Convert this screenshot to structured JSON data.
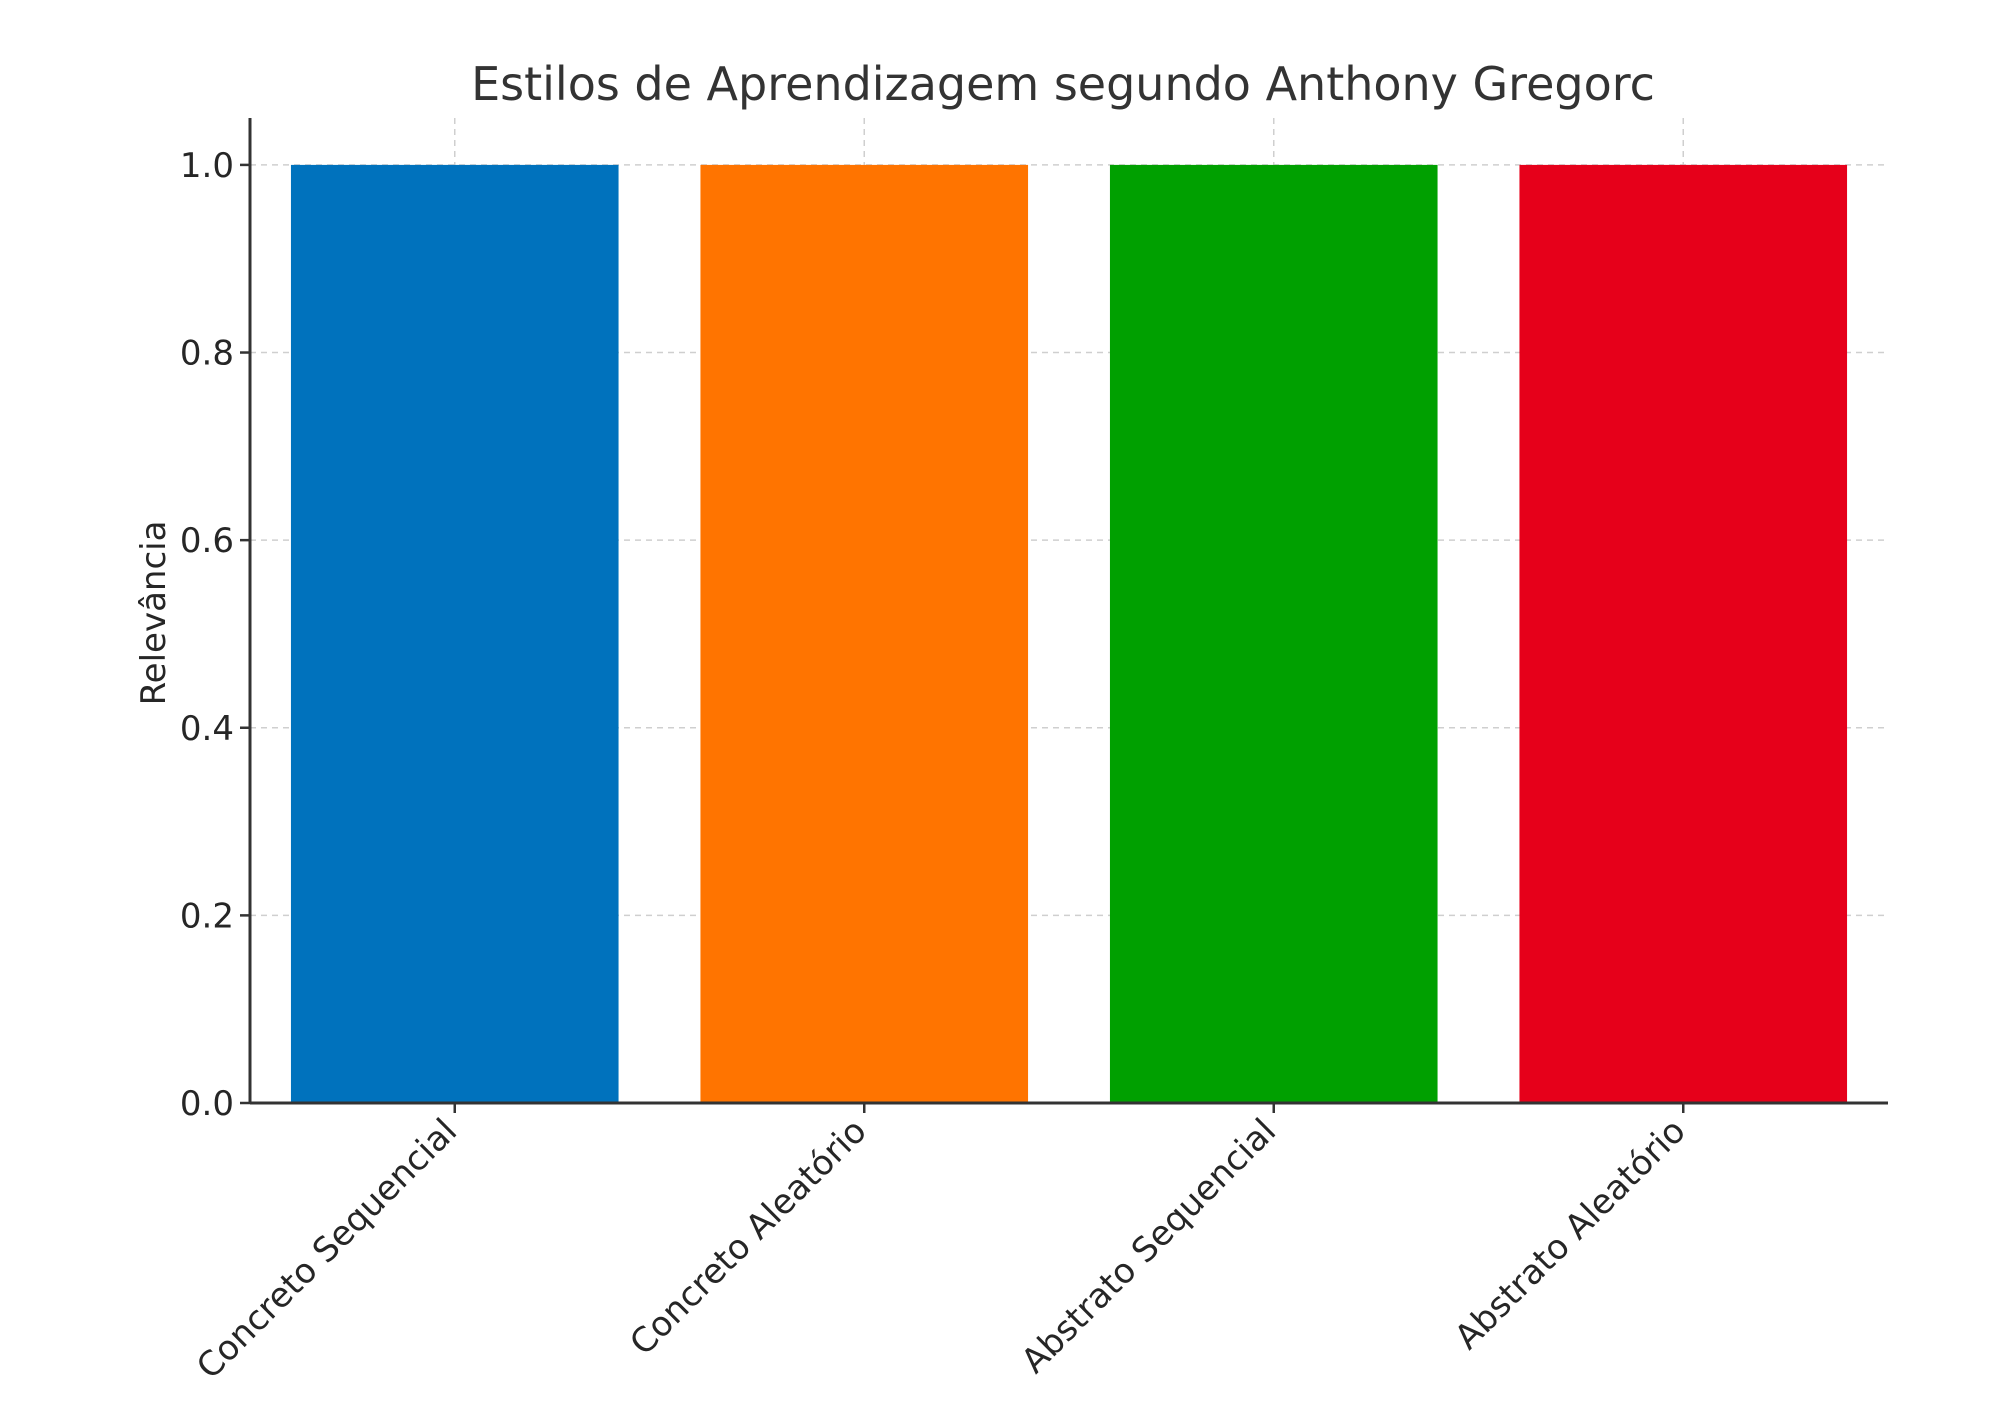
{
  "chart_data": {
    "type": "bar",
    "title": "Estilos de Aprendizagem segundo Anthony Gregorc",
    "xlabel": "",
    "ylabel": "Relevância",
    "categories": [
      "Concreto Sequencial",
      "Concreto Aleatório",
      "Abstrato Sequencial",
      "Abstrato Aleatório"
    ],
    "values": [
      1,
      1,
      1,
      1
    ],
    "colors": [
      "#0072bd",
      "#ff7400",
      "#00a000",
      "#e6001a"
    ],
    "ylim": [
      0,
      1.05
    ],
    "yticks": [
      "0.0",
      "0.2",
      "0.4",
      "0.6",
      "0.8",
      "1.0"
    ],
    "grid": true,
    "legend": "none"
  }
}
